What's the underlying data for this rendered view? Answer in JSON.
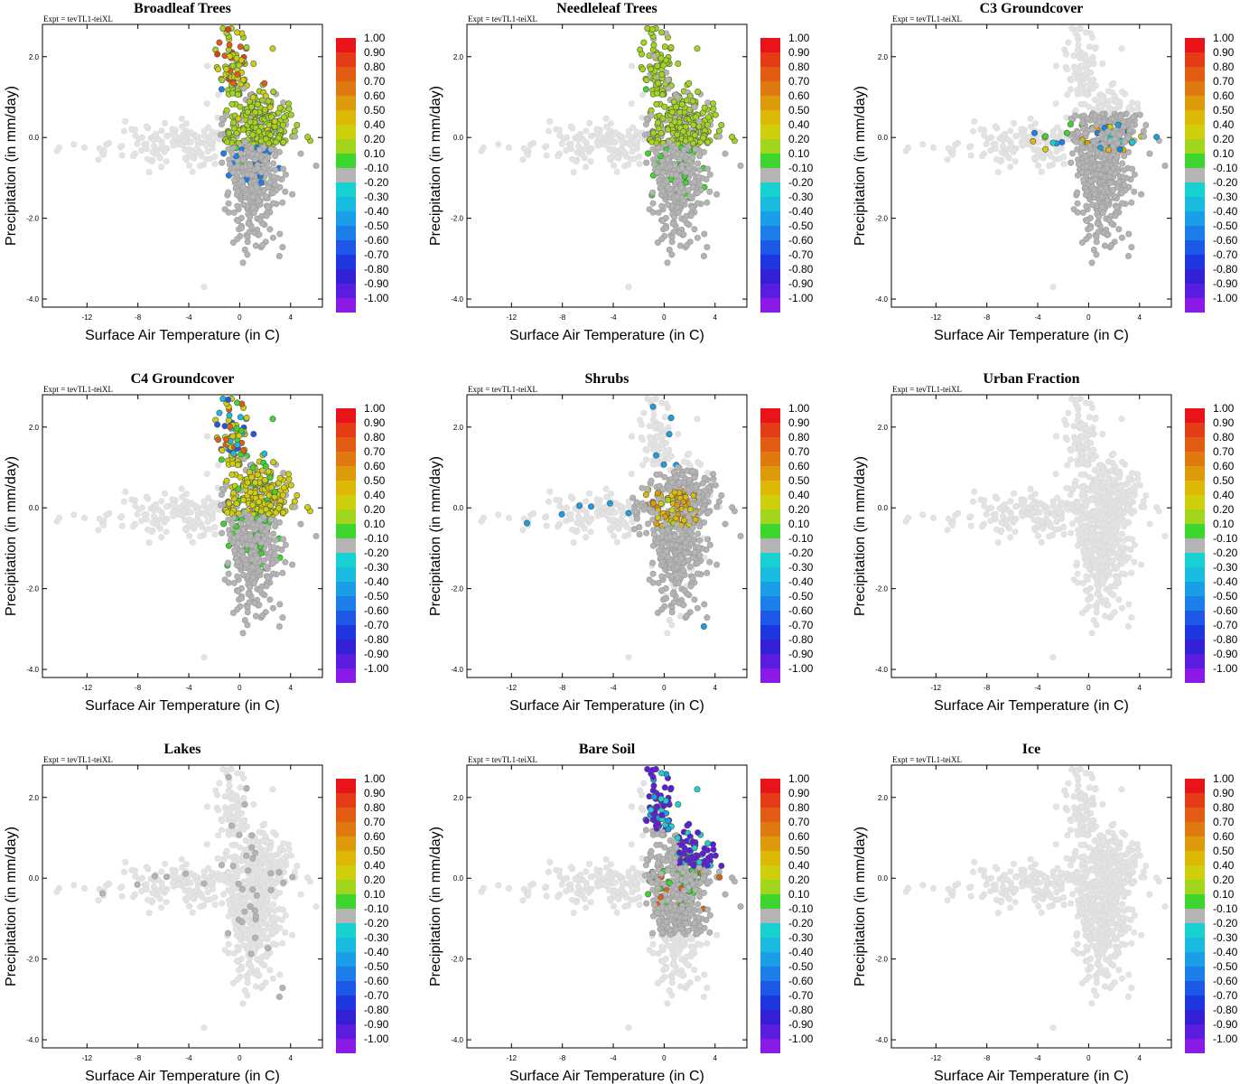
{
  "chart_data": {
    "type": "scatter",
    "figure": "Soil moisture sensitivity scatter panels by land-cover type",
    "experiment_label": "Expt = tevTL1-teiXL",
    "shared": {
      "xlabel": "Surface Air Temperature (in C)",
      "ylabel": "Precipitation (in mm/day)",
      "xlim": [
        -15.5,
        6.5
      ],
      "ylim": [
        -4.2,
        2.8
      ],
      "xticks": [
        -12,
        -8,
        -4,
        0,
        4
      ],
      "xtick_labels": [
        "-12",
        "-8",
        "-4",
        "0",
        "4"
      ],
      "yticks": [
        -4,
        -2,
        0,
        2
      ],
      "ytick_labels": [
        "-4.0",
        "-2.0",
        "0.0",
        "2.0"
      ],
      "colorbar_labels": [
        "1.00",
        "0.90",
        "0.80",
        "0.70",
        "0.60",
        "0.50",
        "0.40",
        "0.20",
        "0.10",
        "-0.10",
        "-0.20",
        "-0.30",
        "-0.40",
        "-0.50",
        "-0.60",
        "-0.70",
        "-0.80",
        "-0.90",
        "-1.00"
      ],
      "colorbar_colors": [
        "#e8141a",
        "#e53b16",
        "#e25c14",
        "#e07a10",
        "#dd9a0a",
        "#ddb806",
        "#cfcf0c",
        "#a2d61c",
        "#3ed52e",
        "#b4b4b4",
        "#18d2d2",
        "#19bbe0",
        "#1a9ee8",
        "#1c7ee8",
        "#1d58e6",
        "#1d36e0",
        "#3320d6",
        "#5a1de0",
        "#8a1ae6"
      ],
      "missing_color": "#e3e3e3"
    },
    "panels": [
      {
        "title": "Broadleaf Trees",
        "mode": "broadleaf"
      },
      {
        "title": "Needleleaf Trees",
        "mode": "needleleaf"
      },
      {
        "title": "C3 Groundcover",
        "mode": "c3"
      },
      {
        "title": "C4 Groundcover",
        "mode": "c4"
      },
      {
        "title": "Shrubs",
        "mode": "shrubs"
      },
      {
        "title": "Urban Fraction",
        "mode": "empty"
      },
      {
        "title": "Lakes",
        "mode": "lakes"
      },
      {
        "title": "Bare Soil",
        "mode": "baresoil"
      },
      {
        "title": "Ice",
        "mode": "empty"
      }
    ]
  }
}
